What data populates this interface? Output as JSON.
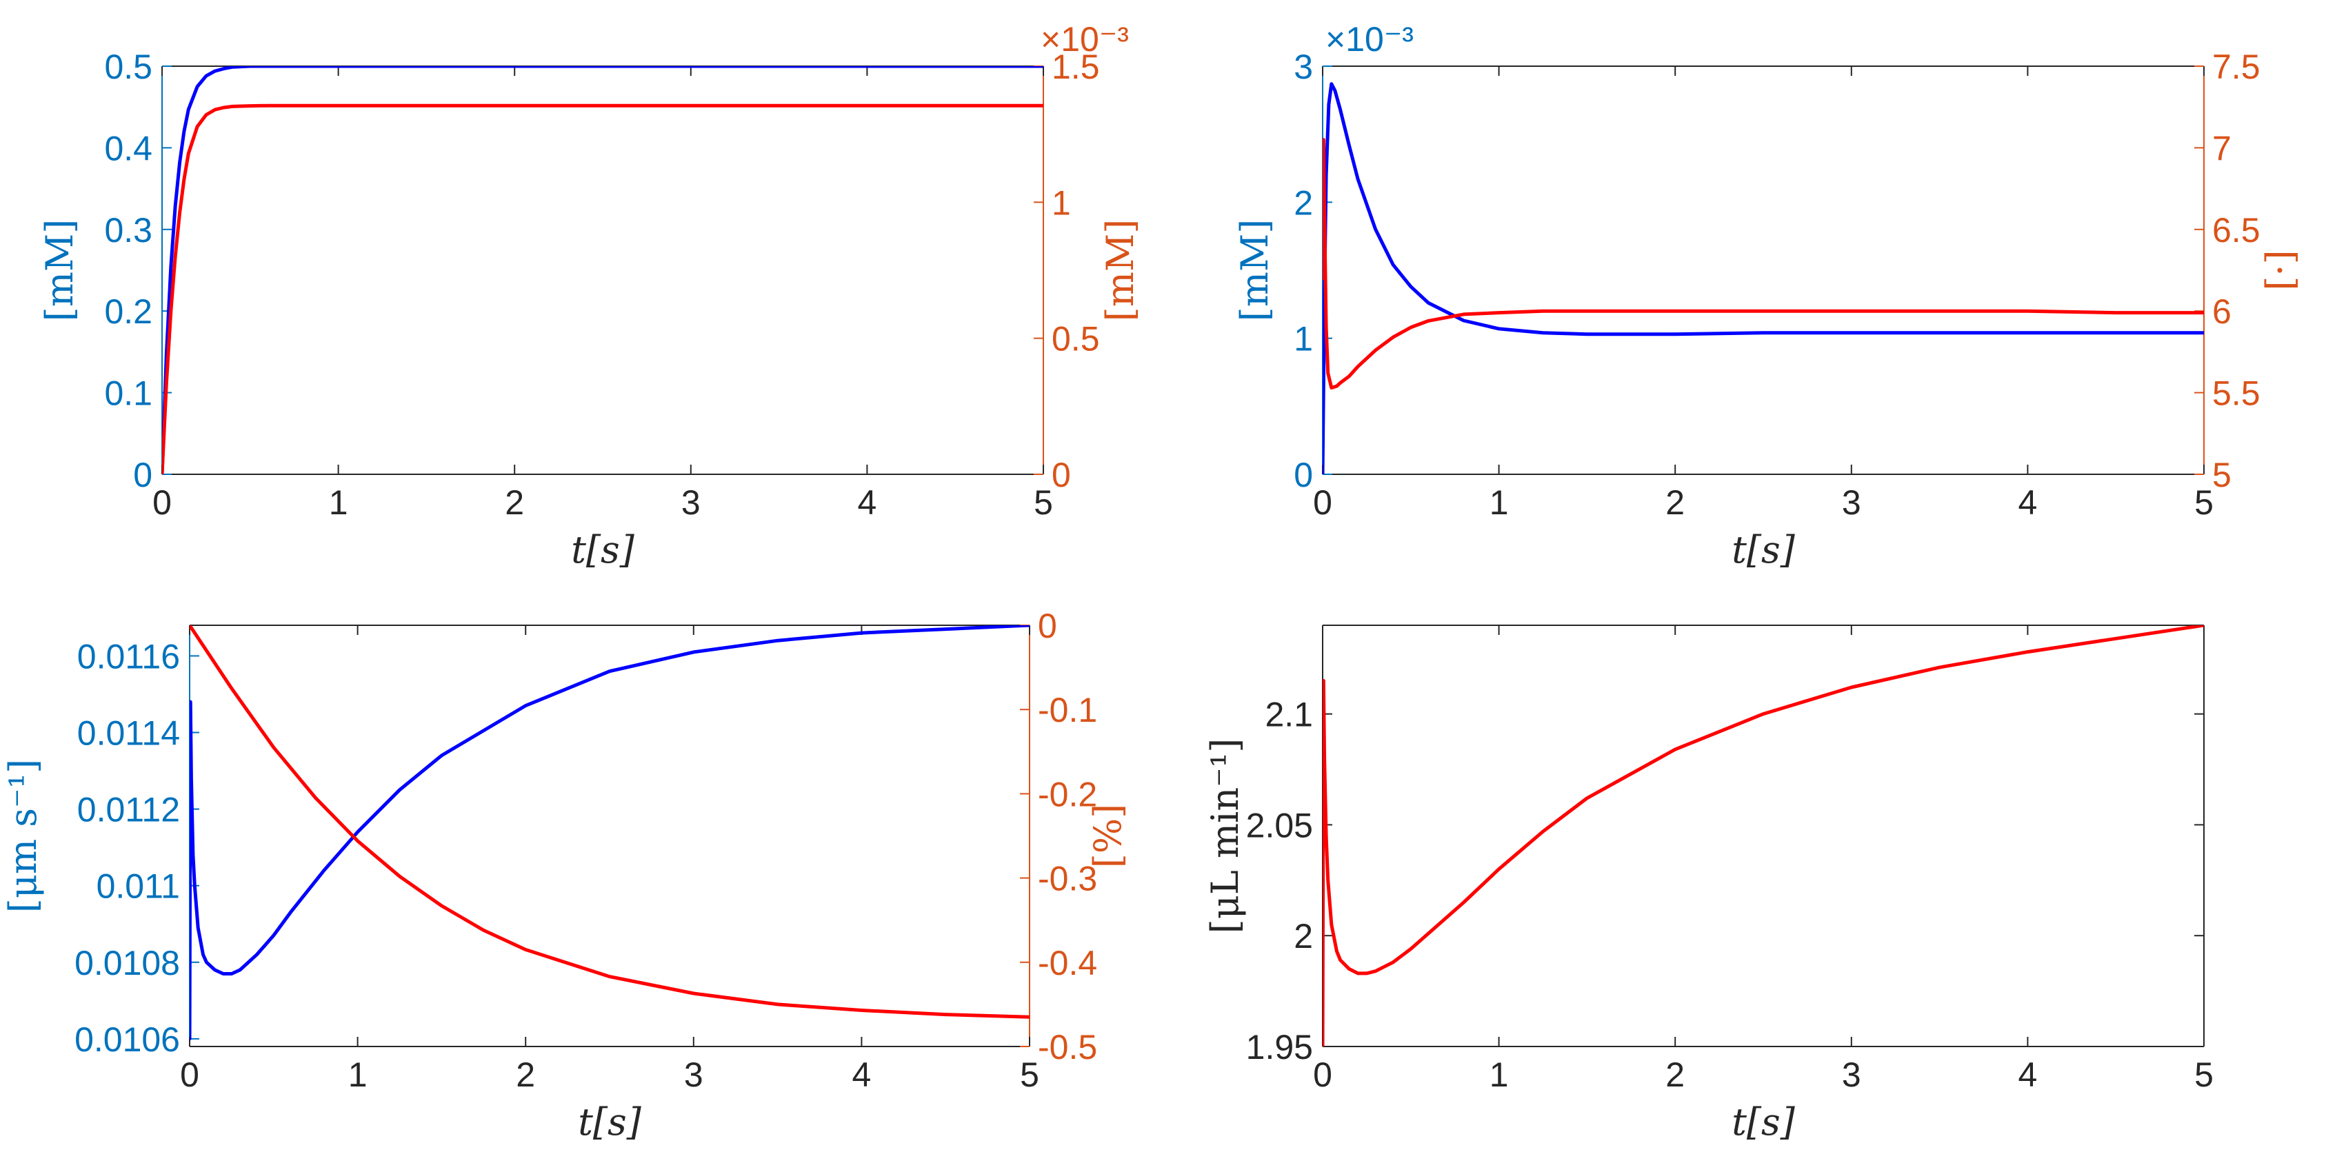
{
  "colors": {
    "left_axis": "#0072BD",
    "right_axis": "#D95319",
    "black_axis": "#262626",
    "blue_line": "#0000FF",
    "red_line": "#FF0000"
  },
  "chart_data": [
    {
      "type": "line",
      "xlabel": "t[s]",
      "xlim": [
        0,
        5
      ],
      "xticks": [
        0,
        1,
        2,
        3,
        4,
        5
      ],
      "xtick_labels": [
        "0",
        "1",
        "2",
        "3",
        "4",
        "5"
      ],
      "left_axis": {
        "ylabel": "[mM]",
        "ylim": [
          0,
          0.5
        ],
        "ticks": [
          0,
          0.1,
          0.2,
          0.3,
          0.4,
          0.5
        ],
        "tick_labels": [
          "0",
          "0.1",
          "0.2",
          "0.3",
          "0.4",
          "0.5"
        ],
        "exponent": ""
      },
      "right_axis": {
        "ylabel": "[mM]",
        "ylim": [
          0,
          1.5
        ],
        "ticks": [
          0,
          0.5,
          1,
          1.5
        ],
        "tick_labels": [
          "0",
          "0.5",
          "1",
          "1.5"
        ],
        "exponent": "×10⁻³"
      },
      "series": [
        {
          "axis": "left",
          "color": "blue",
          "x": [
            0,
            0.025,
            0.05,
            0.075,
            0.1,
            0.125,
            0.15,
            0.2,
            0.25,
            0.3,
            0.35,
            0.4,
            0.5,
            0.6,
            0.8,
            1,
            2,
            3,
            4,
            5
          ],
          "y": [
            0,
            0.148,
            0.254,
            0.329,
            0.382,
            0.42,
            0.447,
            0.475,
            0.488,
            0.494,
            0.497,
            0.499,
            0.5,
            0.5,
            0.5,
            0.5,
            0.5,
            0.5,
            0.5,
            0.5
          ]
        },
        {
          "axis": "right",
          "color": "red",
          "x": [
            0,
            0.025,
            0.05,
            0.075,
            0.1,
            0.125,
            0.15,
            0.2,
            0.25,
            0.3,
            0.35,
            0.4,
            0.5,
            0.6,
            0.8,
            1,
            2,
            3,
            4,
            5
          ],
          "y": [
            0,
            0.337,
            0.599,
            0.802,
            0.961,
            1.084,
            1.179,
            1.278,
            1.321,
            1.34,
            1.348,
            1.352,
            1.354,
            1.355,
            1.355,
            1.355,
            1.355,
            1.355,
            1.355,
            1.355
          ]
        }
      ]
    },
    {
      "type": "line",
      "xlabel": "t[s]",
      "xlim": [
        0,
        5
      ],
      "xticks": [
        0,
        1,
        2,
        3,
        4,
        5
      ],
      "xtick_labels": [
        "0",
        "1",
        "2",
        "3",
        "4",
        "5"
      ],
      "left_axis": {
        "ylabel": "[mM]",
        "ylim": [
          0,
          3
        ],
        "ticks": [
          0,
          1,
          2,
          3
        ],
        "tick_labels": [
          "0",
          "1",
          "2",
          "3"
        ],
        "exponent": "×10⁻³"
      },
      "right_axis": {
        "ylabel": "[·]",
        "ylim": [
          5,
          7.5
        ],
        "ticks": [
          5,
          5.5,
          6,
          6.5,
          7,
          7.5
        ],
        "tick_labels": [
          "5",
          "5.5",
          "6",
          "6.5",
          "7",
          "7.5"
        ],
        "exponent": ""
      },
      "series": [
        {
          "axis": "left",
          "color": "blue",
          "x": [
            0,
            0.01,
            0.02,
            0.035,
            0.05,
            0.07,
            0.1,
            0.15,
            0.2,
            0.3,
            0.4,
            0.5,
            0.6,
            0.8,
            1,
            1.25,
            1.5,
            2,
            2.5,
            3,
            3.5,
            4,
            4.5,
            5
          ],
          "y": [
            0,
            1.3,
            2.2,
            2.72,
            2.87,
            2.82,
            2.68,
            2.42,
            2.17,
            1.8,
            1.54,
            1.38,
            1.26,
            1.13,
            1.07,
            1.04,
            1.03,
            1.03,
            1.04,
            1.04,
            1.04,
            1.04,
            1.04,
            1.04
          ]
        },
        {
          "axis": "right",
          "color": "red",
          "x": [
            0,
            0.005,
            0.01,
            0.02,
            0.03,
            0.05,
            0.08,
            0.1,
            0.15,
            0.2,
            0.3,
            0.4,
            0.5,
            0.6,
            0.8,
            1,
            1.25,
            1.5,
            2,
            2.5,
            3,
            3.5,
            4,
            4.5,
            5
          ],
          "y": [
            6.2,
            7.05,
            6.6,
            5.9,
            5.62,
            5.53,
            5.54,
            5.56,
            5.6,
            5.66,
            5.76,
            5.84,
            5.9,
            5.94,
            5.98,
            5.99,
            6.0,
            6.0,
            6.0,
            6.0,
            6.0,
            6.0,
            6.0,
            5.99,
            5.99
          ]
        }
      ]
    },
    {
      "type": "line",
      "xlabel": "t[s]",
      "xlim": [
        0,
        5
      ],
      "xticks": [
        0,
        1,
        2,
        3,
        4,
        5
      ],
      "xtick_labels": [
        "0",
        "1",
        "2",
        "3",
        "4",
        "5"
      ],
      "left_axis": {
        "ylabel": "[μm s⁻¹]",
        "ylim": [
          0.01058,
          0.01168
        ],
        "ticks": [
          0.0106,
          0.0108,
          0.011,
          0.0112,
          0.0114,
          0.0116
        ],
        "tick_labels": [
          "0.0106",
          "0.0108",
          "0.011",
          "0.0112",
          "0.0114",
          "0.0116"
        ],
        "exponent": ""
      },
      "right_axis": {
        "ylabel": "[%]",
        "ylim": [
          -0.5,
          0
        ],
        "ticks": [
          -0.5,
          -0.4,
          -0.3,
          -0.2,
          -0.1,
          0
        ],
        "tick_labels": [
          "-0.5",
          "-0.4",
          "-0.3",
          "-0.2",
          "-0.1",
          "0"
        ],
        "exponent": ""
      },
      "series": [
        {
          "axis": "left",
          "color": "blue",
          "x": [
            0,
            0.005,
            0.01,
            0.02,
            0.03,
            0.05,
            0.08,
            0.1,
            0.15,
            0.2,
            0.25,
            0.3,
            0.4,
            0.5,
            0.6,
            0.8,
            1,
            1.25,
            1.5,
            2,
            2.5,
            3,
            3.5,
            4,
            4.5,
            5
          ],
          "y": [
            0.0106,
            0.01148,
            0.01128,
            0.01108,
            0.011,
            0.01089,
            0.01082,
            0.0108,
            0.01078,
            0.01077,
            0.01077,
            0.01078,
            0.01082,
            0.01087,
            0.01093,
            0.01104,
            0.01114,
            0.01125,
            0.01134,
            0.01147,
            0.01156,
            0.01161,
            0.01164,
            0.01166,
            0.01167,
            0.01168
          ]
        },
        {
          "axis": "right",
          "color": "red",
          "x": [
            0,
            0.25,
            0.5,
            0.75,
            1,
            1.25,
            1.5,
            1.75,
            2,
            2.5,
            3,
            3.5,
            4,
            4.5,
            5
          ],
          "y": [
            0,
            -0.075,
            -0.145,
            -0.205,
            -0.256,
            -0.298,
            -0.333,
            -0.362,
            -0.385,
            -0.417,
            -0.437,
            -0.45,
            -0.457,
            -0.462,
            -0.465
          ]
        }
      ]
    },
    {
      "type": "line",
      "xlabel": "t[s]",
      "xlim": [
        0,
        5
      ],
      "xticks": [
        0,
        1,
        2,
        3,
        4,
        5
      ],
      "xtick_labels": [
        "0",
        "1",
        "2",
        "3",
        "4",
        "5"
      ],
      "left_axis": {
        "ylabel": "[μL min⁻¹]",
        "ylim": [
          1.95,
          2.14
        ],
        "ticks": [
          1.95,
          2,
          2.05,
          2.1
        ],
        "tick_labels": [
          "1.95",
          "2",
          "2.05",
          "2.1"
        ],
        "exponent": ""
      },
      "series": [
        {
          "axis": "left",
          "color": "red",
          "x": [
            0,
            0.005,
            0.01,
            0.02,
            0.03,
            0.05,
            0.08,
            0.1,
            0.15,
            0.2,
            0.25,
            0.3,
            0.4,
            0.5,
            0.6,
            0.8,
            1,
            1.25,
            1.5,
            2,
            2.5,
            3,
            3.5,
            4,
            4.5,
            5
          ],
          "y": [
            1.95,
            2.115,
            2.08,
            2.045,
            2.025,
            2.005,
            1.993,
            1.989,
            1.985,
            1.983,
            1.983,
            1.984,
            1.988,
            1.994,
            2.001,
            2.015,
            2.03,
            2.047,
            2.062,
            2.084,
            2.1,
            2.112,
            2.121,
            2.128,
            2.134,
            2.14
          ]
        }
      ]
    }
  ]
}
